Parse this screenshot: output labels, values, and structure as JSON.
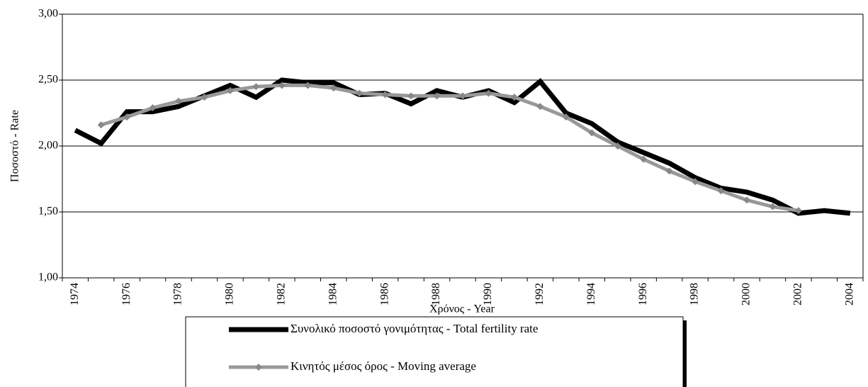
{
  "chart_data": {
    "type": "line",
    "y_label": "Ποσοστό - Rate",
    "x_label": "Χρόνος - Year",
    "categories": [
      "1974",
      null,
      "1976",
      null,
      "1978",
      null,
      "1980",
      null,
      "1982",
      null,
      "1984",
      null,
      "1986",
      null,
      "1988",
      null,
      "1990",
      null,
      "1992",
      null,
      "1994",
      null,
      "1996",
      null,
      "1998",
      null,
      "2000",
      null,
      "2002",
      null,
      "2004"
    ],
    "series": [
      {
        "name": "Συνολικό ποσοστό γονιμότητας - Total fertility rate",
        "color": "#000000",
        "values": [
          2.12,
          2.02,
          2.26,
          2.26,
          2.3,
          2.38,
          2.46,
          2.37,
          2.5,
          2.48,
          2.48,
          2.39,
          2.4,
          2.32,
          2.42,
          2.37,
          2.42,
          2.33,
          2.49,
          2.25,
          2.17,
          2.03,
          1.95,
          1.87,
          1.76,
          1.68,
          1.65,
          1.59,
          1.49,
          1.51,
          1.49
        ]
      },
      {
        "name": "Κινητός μέσος όρος - Moving average",
        "color": "#999999",
        "values": [
          null,
          2.16,
          2.22,
          2.29,
          2.34,
          2.37,
          2.42,
          2.45,
          2.46,
          2.46,
          2.44,
          2.4,
          2.39,
          2.38,
          2.38,
          2.38,
          2.4,
          2.37,
          2.3,
          2.22,
          2.1,
          2.0,
          1.9,
          1.81,
          1.73,
          1.66,
          1.59,
          1.54,
          1.51,
          null,
          null
        ]
      }
    ],
    "ylim": [
      1,
      3
    ],
    "yticks": [
      {
        "value": 1,
        "label": "1,00"
      },
      {
        "value": 1.5,
        "label": "1,50"
      },
      {
        "value": 2,
        "label": "2,00"
      },
      {
        "value": 2.5,
        "label": "2,50"
      },
      {
        "value": 3,
        "label": "3,00"
      }
    ],
    "grid": true,
    "legend": "bottom"
  }
}
